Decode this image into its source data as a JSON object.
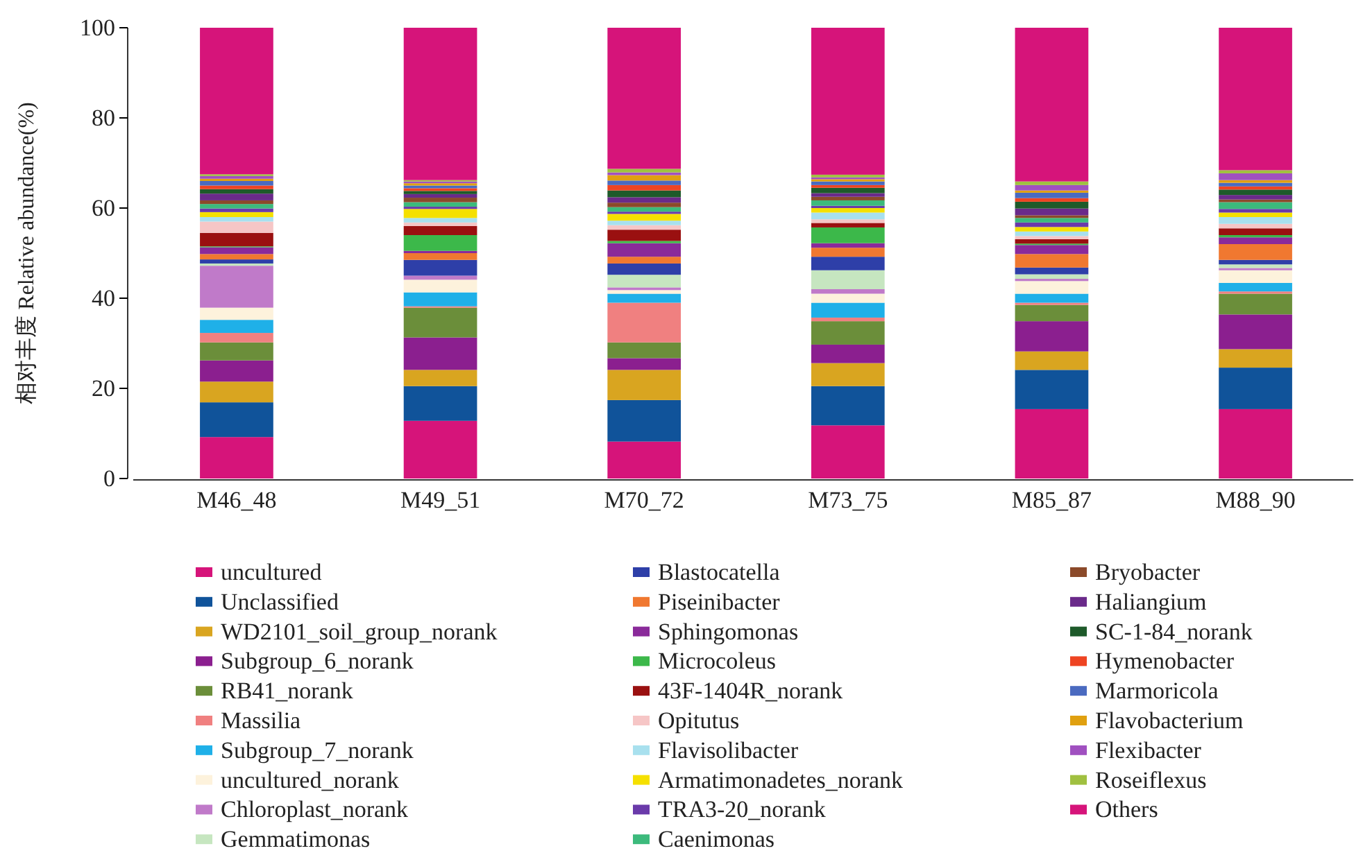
{
  "chart_data": {
    "type": "bar",
    "stacked": true,
    "ylabel": "相对丰度 Relative abundance(%)",
    "categories": [
      "M46_48",
      "M49_51",
      "M70_72",
      "M73_75",
      "M85_87",
      "M88_90"
    ],
    "ylim": [
      0,
      100
    ],
    "yticks": [
      0,
      20,
      40,
      60,
      80,
      100
    ],
    "grid": false,
    "legend": "bottom",
    "series": [
      {
        "name": "uncultured",
        "color": "#d6147a",
        "values": [
          9.2,
          12.8,
          8.2,
          11.8,
          15.4,
          15.4
        ]
      },
      {
        "name": "Unclassified",
        "color": "#10539a",
        "values": [
          7.7,
          7.7,
          9.2,
          8.7,
          8.7,
          9.2
        ]
      },
      {
        "name": "WD2101_soil_group_norank",
        "color": "#d9a520",
        "values": [
          4.6,
          3.6,
          6.7,
          5.1,
          4.1,
          4.1
        ]
      },
      {
        "name": "Subgroup_6_norank",
        "color": "#8b1f8f",
        "values": [
          4.7,
          7.2,
          2.6,
          4.1,
          6.7,
          7.7
        ]
      },
      {
        "name": "RB41_norank",
        "color": "#6b8e3a",
        "values": [
          4.0,
          6.6,
          3.5,
          5.2,
          3.6,
          4.6
        ]
      },
      {
        "name": "Massilia",
        "color": "#f08080",
        "values": [
          2.1,
          0.3,
          8.8,
          0.8,
          0.5,
          0.5
        ]
      },
      {
        "name": "Subgroup_7_norank",
        "color": "#1fb0e8",
        "values": [
          2.9,
          3.1,
          2.0,
          3.3,
          2.0,
          1.9
        ]
      },
      {
        "name": "uncultured_norank",
        "color": "#fdf2dc",
        "values": [
          2.7,
          2.8,
          0.8,
          2.0,
          2.8,
          2.8
        ]
      },
      {
        "name": "Chloroplast_norank",
        "color": "#c07ac9",
        "values": [
          9.3,
          0.9,
          0.6,
          1.0,
          0.5,
          0.5
        ]
      },
      {
        "name": "Gemmatimonas",
        "color": "#c6e6c0",
        "values": [
          0.5,
          null,
          2.8,
          4.2,
          1.0,
          0.8
        ]
      },
      {
        "name": "Blastocatella",
        "color": "#2e3fa8",
        "values": [
          0.9,
          3.5,
          2.5,
          3.0,
          1.5,
          1.0
        ]
      },
      {
        "name": "Piseinibacter",
        "color": "#f07830",
        "values": [
          1.2,
          1.5,
          1.5,
          2.0,
          3.0,
          3.5
        ]
      },
      {
        "name": "Sphingomonas",
        "color": "#8a2a9a",
        "values": [
          1.5,
          0.5,
          3.0,
          1.0,
          2.0,
          1.5
        ]
      },
      {
        "name": "Microcoleus",
        "color": "#3cb84a",
        "values": [
          0.2,
          3.5,
          0.5,
          3.5,
          0.3,
          0.5
        ]
      },
      {
        "name": "43F-1404R_norank",
        "color": "#9a1010",
        "values": [
          3.0,
          2.0,
          2.5,
          1.0,
          1.0,
          1.5
        ]
      },
      {
        "name": "Opitutus",
        "color": "#f6c6c6",
        "values": [
          2.5,
          0.8,
          1.0,
          0.8,
          0.7,
          1.0
        ]
      },
      {
        "name": "Flavisolibacter",
        "color": "#a8e0ee",
        "values": [
          1.0,
          1.0,
          1.0,
          1.5,
          1.0,
          1.5
        ]
      },
      {
        "name": "Armatimonadetes_norank",
        "color": "#f5e000",
        "values": [
          1.1,
          2.0,
          1.5,
          1.0,
          1.0,
          1.0
        ]
      },
      {
        "name": "TRA3-20_norank",
        "color": "#6a3aaa",
        "values": [
          0.8,
          0.5,
          0.5,
          0.5,
          1.0,
          0.8
        ]
      },
      {
        "name": "Caenimonas",
        "color": "#3cba7c",
        "values": [
          1.0,
          1.0,
          1.0,
          1.2,
          1.0,
          1.5
        ]
      },
      {
        "name": "Bryobacter",
        "color": "#8b4a2a",
        "values": [
          0.8,
          1.0,
          1.0,
          0.8,
          0.6,
          0.6
        ]
      },
      {
        "name": "Haliangium",
        "color": "#6a2a8a",
        "values": [
          1.5,
          0.8,
          1.2,
          0.8,
          1.5,
          1.0
        ]
      },
      {
        "name": "SC-1-84_norank",
        "color": "#1e5a2a",
        "values": [
          1.0,
          0.7,
          1.5,
          1.2,
          1.5,
          1.2
        ]
      },
      {
        "name": "Hymenobacter",
        "color": "#ee4422",
        "values": [
          0.8,
          0.6,
          1.2,
          0.6,
          0.8,
          0.7
        ]
      },
      {
        "name": "Marmoricola",
        "color": "#4a6ac0",
        "values": [
          1.0,
          0.6,
          1.0,
          0.8,
          1.2,
          0.8
        ]
      },
      {
        "name": "Flavobacterium",
        "color": "#e0a010",
        "values": [
          0.5,
          0.5,
          1.2,
          0.5,
          0.5,
          0.6
        ]
      },
      {
        "name": "Flexibacter",
        "color": "#a050c0",
        "values": [
          0.6,
          0.4,
          0.6,
          0.4,
          1.2,
          1.5
        ]
      },
      {
        "name": "Roseiflexus",
        "color": "#a0c040",
        "values": [
          0.4,
          0.3,
          0.8,
          0.6,
          0.8,
          0.7
        ]
      },
      {
        "name": "Others",
        "color": "#d6147a",
        "values": [
          32.5,
          33.8,
          31.3,
          32.6,
          34.1,
          31.6
        ]
      }
    ]
  }
}
